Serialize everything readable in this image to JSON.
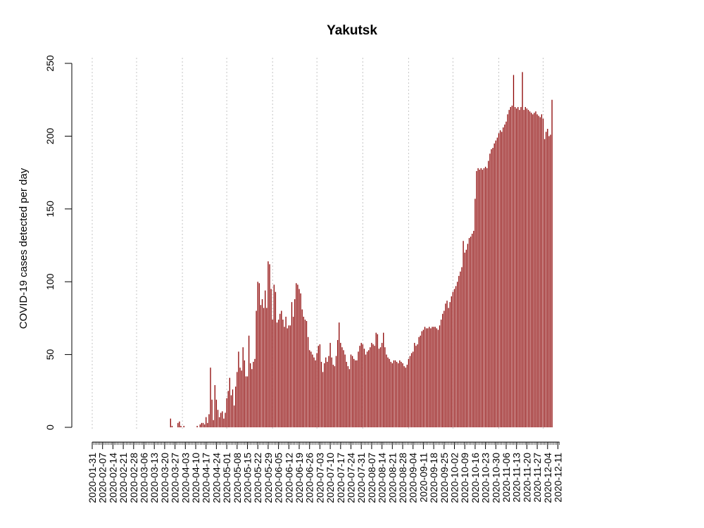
{
  "chart_data": {
    "type": "bar",
    "title": "Yakutsk",
    "xlabel": "",
    "ylabel": "COVID-19 cases detected per day",
    "ylim": [
      0,
      250
    ],
    "yticks": [
      0,
      50,
      100,
      150,
      200,
      250
    ],
    "x_start": "2020-01-31",
    "x_end": "2020-12-12",
    "xtick_labels": [
      "2020-01-31",
      "2020-02-07",
      "2020-02-14",
      "2020-02-21",
      "2020-02-28",
      "2020-03-06",
      "2020-03-13",
      "2020-03-20",
      "2020-03-27",
      "2020-04-03",
      "2020-04-10",
      "2020-04-17",
      "2020-04-24",
      "2020-05-01",
      "2020-05-08",
      "2020-05-15",
      "2020-05-22",
      "2020-05-29",
      "2020-06-05",
      "2020-06-12",
      "2020-06-19",
      "2020-06-26",
      "2020-07-03",
      "2020-07-10",
      "2020-07-17",
      "2020-07-24",
      "2020-07-31",
      "2020-08-07",
      "2020-08-14",
      "2020-08-21",
      "2020-08-28",
      "2020-09-04",
      "2020-09-11",
      "2020-09-18",
      "2020-09-25",
      "2020-10-02",
      "2020-10-09",
      "2020-10-16",
      "2020-10-23",
      "2020-10-30",
      "2020-11-06",
      "2020-11-13",
      "2020-11-20",
      "2020-11-27",
      "2020-12-04",
      "2020-12-11"
    ],
    "gridline_dates": [
      "2020-01-31",
      "2020-03-01",
      "2020-04-01",
      "2020-05-01",
      "2020-06-01",
      "2020-07-01",
      "2020-08-01",
      "2020-09-01",
      "2020-10-01",
      "2020-11-01",
      "2020-12-01"
    ],
    "grid": "vertical dotted at month starts",
    "bar_color": "#8b0000",
    "series": [
      {
        "values": [
          0,
          0,
          0,
          0,
          0,
          0,
          0,
          0,
          0,
          0,
          0,
          0,
          0,
          0,
          0,
          0,
          0,
          0,
          0,
          0,
          0,
          0,
          0,
          0,
          0,
          0,
          0,
          0,
          0,
          0,
          0,
          0,
          0,
          0,
          0,
          0,
          0,
          0,
          0,
          0,
          0,
          0,
          0,
          0,
          0,
          0,
          0,
          0,
          0,
          0,
          0,
          0,
          0,
          6,
          1,
          0,
          0,
          0,
          3,
          4,
          1,
          0,
          1,
          0,
          0,
          0,
          0,
          0,
          0,
          0,
          0,
          1,
          0,
          2,
          3,
          3,
          2,
          7,
          3,
          9,
          41,
          19,
          5,
          29,
          19,
          12,
          7,
          10,
          11,
          6,
          10,
          20,
          25,
          34,
          22,
          26,
          15,
          28,
          38,
          52,
          41,
          39,
          55,
          46,
          35,
          35,
          63,
          44,
          40,
          45,
          47,
          80,
          100,
          99,
          84,
          88,
          82,
          94,
          82,
          114,
          112,
          95,
          74,
          98,
          93,
          72,
          74,
          78,
          80,
          74,
          69,
          76,
          68,
          70,
          70,
          86,
          76,
          88,
          99,
          98,
          95,
          92,
          81,
          76,
          74,
          73,
          62,
          53,
          52,
          50,
          48,
          46,
          51,
          56,
          57,
          45,
          38,
          44,
          48,
          45,
          49,
          58,
          48,
          43,
          42,
          49,
          60,
          72,
          58,
          55,
          53,
          50,
          45,
          42,
          40,
          50,
          49,
          47,
          46,
          46,
          52,
          56,
          58,
          57,
          54,
          50,
          52,
          53,
          55,
          58,
          57,
          56,
          65,
          64,
          54,
          55,
          58,
          65,
          55,
          50,
          48,
          47,
          45,
          44,
          46,
          46,
          45,
          44,
          46,
          45,
          44,
          42,
          41,
          43,
          47,
          49,
          51,
          52,
          58,
          56,
          57,
          62,
          63,
          66,
          67,
          69,
          68,
          68,
          69,
          68,
          69,
          69,
          69,
          68,
          67,
          70,
          74,
          78,
          80,
          85,
          87,
          82,
          86,
          90,
          93,
          95,
          97,
          100,
          104,
          107,
          110,
          128,
          120,
          122,
          126,
          130,
          131,
          133,
          135,
          157,
          176,
          178,
          177,
          178,
          177,
          178,
          179,
          178,
          183,
          188,
          191,
          192,
          195,
          197,
          199,
          202,
          204,
          203,
          206,
          208,
          210,
          215,
          218,
          220,
          221,
          242,
          220,
          219,
          220,
          218,
          220,
          244,
          218,
          220,
          219,
          218,
          217,
          216,
          215,
          216,
          217,
          215,
          214,
          213,
          215,
          212,
          198,
          203,
          205,
          200,
          201,
          225
        ]
      }
    ]
  }
}
